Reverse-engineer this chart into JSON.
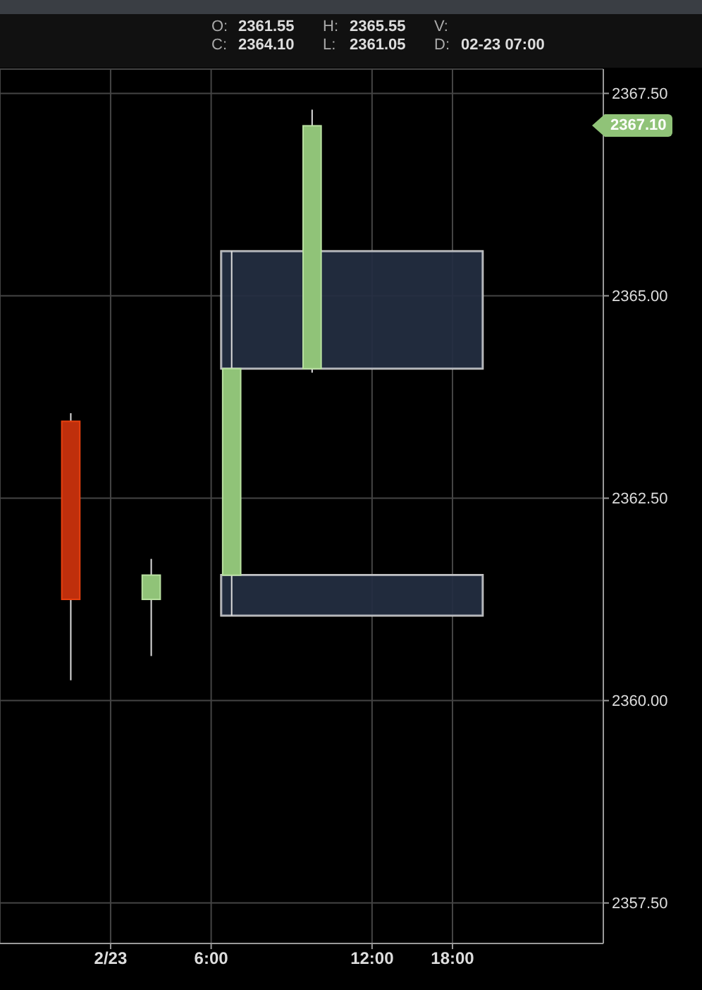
{
  "chart_data": {
    "type": "candlestick",
    "categories": [
      null,
      null,
      null,
      null,
      null,
      "2/23",
      null,
      null,
      null,
      null,
      "6:00",
      null,
      null,
      null,
      null,
      null,
      null,
      null,
      "12:00",
      null,
      null,
      null,
      "18:00",
      null,
      null,
      null,
      null,
      null,
      null,
      null
    ],
    "ohlc": [
      null,
      null,
      null,
      [
        2363.45,
        2363.55,
        2360.25,
        2361.25
      ],
      null,
      null,
      null,
      [
        2361.25,
        2361.75,
        2360.55,
        2361.55
      ],
      null,
      null,
      null,
      [
        2361.55,
        2365.55,
        2361.05,
        2364.1
      ],
      null,
      null,
      null,
      [
        2364.1,
        2367.3,
        2364.05,
        2367.1
      ],
      null,
      null,
      null,
      null,
      null,
      null,
      null,
      null,
      null,
      null,
      null,
      null,
      null,
      null
    ],
    "colors": [
      null,
      null,
      null,
      "#bf2f0c",
      null,
      null,
      null,
      "#90c378",
      null,
      null,
      null,
      "#90c378",
      null,
      null,
      null,
      "#90c378",
      null,
      null,
      null,
      null,
      null,
      null,
      null,
      null,
      null,
      null,
      null,
      null,
      null,
      null
    ],
    "ylim": [
      2357.0,
      2367.8
    ],
    "yticks": [
      {
        "value": 2357.5,
        "label": "2357.50"
      },
      {
        "value": 2360,
        "label": "2360.00"
      },
      {
        "value": 2362.5,
        "label": "2362.50"
      },
      {
        "value": 2365,
        "label": "2365.00"
      },
      {
        "value": 2367.5,
        "label": "2367.50"
      }
    ],
    "bands": [
      {
        "axis": "y",
        "from": 2364.1,
        "to": 2365.55,
        "color": "#1c2333"
      },
      {
        "axis": "y",
        "from": 2361.05,
        "to": 2361.55,
        "color": "#1c2333"
      }
    ],
    "annotations": [
      "O: 2361.55",
      "H: 2365.55",
      "V:",
      "C: 2364.10",
      "L: 2361.05",
      "D: 02-23 07:00",
      "2367.10"
    ],
    "grid": true
  }
}
